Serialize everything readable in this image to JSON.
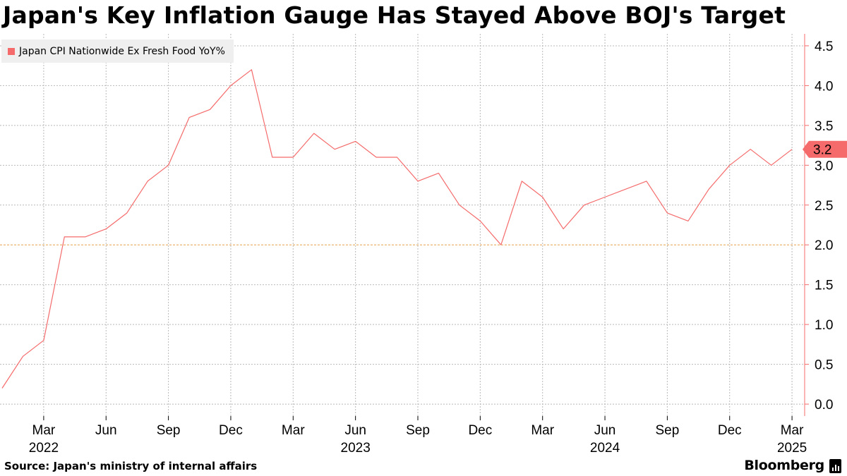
{
  "title": "Japan's Key Inflation Gauge Has Stayed Above BOJ's Target",
  "source": "Source: Japan's ministry of internal affairs",
  "brand": "Bloomberg",
  "colors": {
    "series": "#f56b6b",
    "target_line": "#e9a04b",
    "grid": "#b9b9b9",
    "axis": "#f56b6b",
    "legend_bg": "#efefef"
  },
  "chart_data": {
    "type": "line",
    "title": "Japan's Key Inflation Gauge Has Stayed Above BOJ's Target",
    "xlabel": "",
    "ylabel": "",
    "x": [
      "2022-01",
      "2022-02",
      "2022-03",
      "2022-04",
      "2022-05",
      "2022-06",
      "2022-07",
      "2022-08",
      "2022-09",
      "2022-10",
      "2022-11",
      "2022-12",
      "2023-01",
      "2023-02",
      "2023-03",
      "2023-04",
      "2023-05",
      "2023-06",
      "2023-07",
      "2023-08",
      "2023-09",
      "2023-10",
      "2023-11",
      "2023-12",
      "2024-01",
      "2024-02",
      "2024-03",
      "2024-04",
      "2024-05",
      "2024-06",
      "2024-07",
      "2024-08",
      "2024-09",
      "2024-10",
      "2024-11",
      "2024-12",
      "2025-01",
      "2025-02",
      "2025-03"
    ],
    "series": [
      {
        "name": "Japan CPI Nationwide Ex Fresh Food YoY%",
        "values": [
          0.2,
          0.6,
          0.8,
          2.1,
          2.1,
          2.2,
          2.4,
          2.8,
          3.0,
          3.6,
          3.7,
          4.0,
          4.2,
          3.1,
          3.1,
          3.4,
          3.2,
          3.3,
          3.1,
          3.1,
          2.8,
          2.9,
          2.5,
          2.3,
          2.0,
          2.8,
          2.6,
          2.2,
          2.5,
          2.6,
          2.7,
          2.8,
          2.4,
          2.3,
          2.7,
          3.0,
          3.2,
          3.0,
          3.2
        ]
      }
    ],
    "last_value_label": "3.2",
    "reference_line": 2.0,
    "ylim": [
      -0.15,
      4.65
    ],
    "y_ticks": [
      0.0,
      0.5,
      1.0,
      1.5,
      2.0,
      2.5,
      3.0,
      3.5,
      4.0,
      4.5
    ],
    "y_tick_labels": [
      "0.0",
      "0.5",
      "1.0",
      "1.5",
      "2.0",
      "2.5",
      "3.0",
      "3.5",
      "4.0",
      "4.5"
    ],
    "x_ticks": [
      {
        "date": "2022-03",
        "label": "Mar",
        "year": "2022"
      },
      {
        "date": "2022-06",
        "label": "Jun"
      },
      {
        "date": "2022-09",
        "label": "Sep"
      },
      {
        "date": "2022-12",
        "label": "Dec"
      },
      {
        "date": "2023-03",
        "label": "Mar"
      },
      {
        "date": "2023-06",
        "label": "Jun",
        "year": "2023"
      },
      {
        "date": "2023-09",
        "label": "Sep"
      },
      {
        "date": "2023-12",
        "label": "Dec"
      },
      {
        "date": "2024-03",
        "label": "Mar"
      },
      {
        "date": "2024-06",
        "label": "Jun",
        "year": "2024"
      },
      {
        "date": "2024-09",
        "label": "Sep"
      },
      {
        "date": "2024-12",
        "label": "Dec"
      },
      {
        "date": "2025-03",
        "label": "Mar",
        "year": "2025"
      }
    ],
    "grid": true,
    "legend_position": "top-left",
    "y_axis_side": "right"
  }
}
